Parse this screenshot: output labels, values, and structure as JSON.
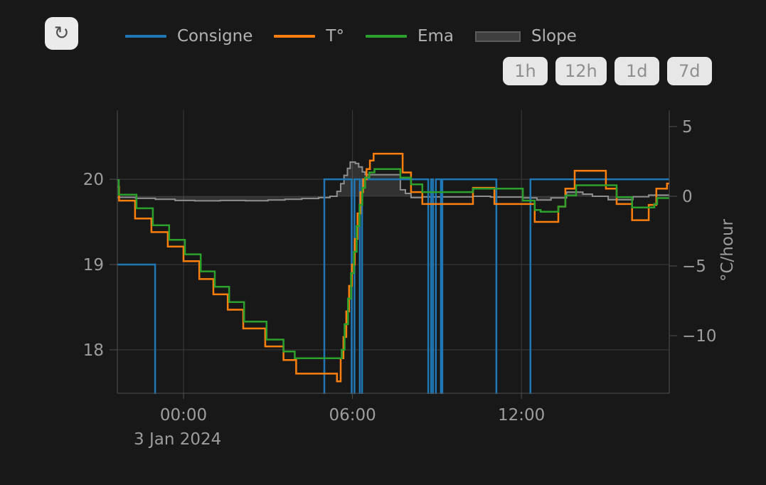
{
  "toolbar": {
    "refresh_icon": "↻"
  },
  "legend": {
    "items": [
      {
        "label": "Consigne",
        "color": "#1f77b4",
        "type": "line"
      },
      {
        "label": "T°",
        "color": "#ff7f0e",
        "type": "line"
      },
      {
        "label": "Ema",
        "color": "#2ca02c",
        "type": "line"
      },
      {
        "label": "Slope",
        "color": "#5c5c5c",
        "fill": "#3f3f3f",
        "type": "area"
      }
    ]
  },
  "time_range_buttons": [
    {
      "label": "1h"
    },
    {
      "label": "12h"
    },
    {
      "label": "1d"
    },
    {
      "label": "7d"
    }
  ],
  "colors": {
    "background": "#181818",
    "grid": "#3c3c3c",
    "axis": "#505050",
    "tick_text": "#9d9d9d",
    "legend_text": "#b2b2b2",
    "button_bg": "#e7e7e7",
    "button_text": "#8f8f8f",
    "slope_stroke": "#8f8f8f",
    "slope_fill": "rgba(145,145,145,0.22)"
  },
  "chart_data": {
    "type": "line",
    "title": "",
    "xlabel_date": "3 Jan 2024",
    "x_unit": "hours from midnight, 3 Jan 2024",
    "x_axis": {
      "range": [
        -2.35,
        17.25
      ],
      "ticks": [
        {
          "v": 0,
          "label": "00:00"
        },
        {
          "v": 6,
          "label": "06:00"
        },
        {
          "v": 12,
          "label": "12:00"
        }
      ]
    },
    "y_left": {
      "unit": "°C",
      "range": [
        17.49,
        20.81
      ],
      "ticks": [
        {
          "v": 20,
          "label": "20"
        },
        {
          "v": 19,
          "label": "19"
        },
        {
          "v": 18,
          "label": "18"
        }
      ]
    },
    "y_right": {
      "label": "°C/hour",
      "range": [
        -14.13,
        6.17
      ],
      "ticks": [
        {
          "v": 5,
          "label": "5"
        },
        {
          "v": 0,
          "label": "0"
        },
        {
          "v": -5,
          "label": "−5"
        },
        {
          "v": -10,
          "label": "−10"
        }
      ]
    },
    "series": [
      {
        "name": "Slope",
        "axis": "right",
        "step": true,
        "area": true,
        "baseline": 0,
        "color": "#8f8f8f",
        "fill": "rgba(145,145,145,0.22)",
        "width": 2,
        "points": [
          [
            -2.35,
            -0.08
          ],
          [
            -1.7,
            -0.15
          ],
          [
            -1.0,
            -0.22
          ],
          [
            -0.3,
            -0.3
          ],
          [
            0.4,
            -0.33
          ],
          [
            1.3,
            -0.3
          ],
          [
            2.2,
            -0.32
          ],
          [
            3.0,
            -0.27
          ],
          [
            3.6,
            -0.22
          ],
          [
            4.2,
            -0.16
          ],
          [
            4.8,
            -0.1
          ],
          [
            5.2,
            0.0
          ],
          [
            5.45,
            0.35
          ],
          [
            5.58,
            0.9
          ],
          [
            5.7,
            1.5
          ],
          [
            5.82,
            2.0
          ],
          [
            5.92,
            2.45
          ],
          [
            6.1,
            2.35
          ],
          [
            6.22,
            2.1
          ],
          [
            6.35,
            1.75
          ],
          [
            6.45,
            1.55
          ],
          [
            7.7,
            0.46
          ],
          [
            7.88,
            0.2
          ],
          [
            8.08,
            -0.1
          ],
          [
            8.48,
            -0.05
          ],
          [
            10.28,
            0.0
          ],
          [
            10.9,
            -0.06
          ],
          [
            12.05,
            -0.12
          ],
          [
            12.55,
            -0.27
          ],
          [
            13.05,
            -0.12
          ],
          [
            13.6,
            0.3
          ],
          [
            14.18,
            0.15
          ],
          [
            14.52,
            0.0
          ],
          [
            15.08,
            -0.25
          ],
          [
            15.96,
            -0.03
          ],
          [
            16.52,
            0.08
          ]
        ]
      },
      {
        "name": "Consigne",
        "axis": "left",
        "step": true,
        "color": "#1f77b4",
        "width": 2.5,
        "points": [
          [
            -2.35,
            19
          ],
          [
            -1.01,
            17
          ],
          [
            5.0,
            20
          ],
          [
            5.97,
            17
          ],
          [
            6.07,
            20
          ],
          [
            6.26,
            17
          ],
          [
            6.34,
            20
          ],
          [
            8.69,
            17
          ],
          [
            8.79,
            20
          ],
          [
            8.86,
            17
          ],
          [
            8.96,
            20
          ],
          [
            9.14,
            17
          ],
          [
            9.19,
            20
          ],
          [
            11.11,
            17
          ],
          [
            12.32,
            20
          ]
        ]
      },
      {
        "name": "T°",
        "axis": "left",
        "step": true,
        "color": "#ff7f0e",
        "width": 2.5,
        "points": [
          [
            -2.35,
            19.91
          ],
          [
            -2.29,
            19.75
          ],
          [
            -1.72,
            19.54
          ],
          [
            -1.14,
            19.38
          ],
          [
            -0.56,
            19.21
          ],
          [
            0.0,
            19.04
          ],
          [
            0.56,
            18.83
          ],
          [
            1.06,
            18.65
          ],
          [
            1.57,
            18.47
          ],
          [
            2.12,
            18.25
          ],
          [
            2.9,
            18.04
          ],
          [
            3.55,
            17.88
          ],
          [
            4.0,
            17.72
          ],
          [
            5.45,
            17.63
          ],
          [
            5.58,
            17.9
          ],
          [
            5.68,
            18.15
          ],
          [
            5.78,
            18.45
          ],
          [
            5.88,
            18.75
          ],
          [
            5.98,
            19.0
          ],
          [
            6.08,
            19.3
          ],
          [
            6.18,
            19.6
          ],
          [
            6.28,
            19.85
          ],
          [
            6.38,
            20.0
          ],
          [
            6.5,
            20.12
          ],
          [
            6.62,
            20.22
          ],
          [
            6.75,
            20.3
          ],
          [
            7.78,
            20.08
          ],
          [
            8.08,
            19.85
          ],
          [
            8.48,
            19.71
          ],
          [
            10.28,
            19.9
          ],
          [
            11.04,
            19.71
          ],
          [
            12.47,
            19.5
          ],
          [
            13.31,
            19.68
          ],
          [
            13.56,
            19.89
          ],
          [
            13.89,
            20.1
          ],
          [
            15.0,
            19.89
          ],
          [
            15.38,
            19.71
          ],
          [
            15.93,
            19.52
          ],
          [
            16.52,
            19.7
          ],
          [
            16.79,
            19.89
          ],
          [
            17.17,
            19.95
          ]
        ]
      },
      {
        "name": "Ema",
        "axis": "left",
        "step": true,
        "color": "#2ca02c",
        "width": 2.5,
        "points": [
          [
            -2.35,
            19.99
          ],
          [
            -2.3,
            19.82
          ],
          [
            -1.67,
            19.66
          ],
          [
            -1.09,
            19.46
          ],
          [
            -0.51,
            19.29
          ],
          [
            0.05,
            19.12
          ],
          [
            0.61,
            18.92
          ],
          [
            1.11,
            18.74
          ],
          [
            1.62,
            18.56
          ],
          [
            2.15,
            18.33
          ],
          [
            2.95,
            18.12
          ],
          [
            3.55,
            17.98
          ],
          [
            3.95,
            17.9
          ],
          [
            5.62,
            18.0
          ],
          [
            5.72,
            18.3
          ],
          [
            5.84,
            18.6
          ],
          [
            5.95,
            18.9
          ],
          [
            6.05,
            19.15
          ],
          [
            6.15,
            19.45
          ],
          [
            6.25,
            19.7
          ],
          [
            6.35,
            19.9
          ],
          [
            6.45,
            20.02
          ],
          [
            6.6,
            20.08
          ],
          [
            6.78,
            20.12
          ],
          [
            7.7,
            20.02
          ],
          [
            8.08,
            19.94
          ],
          [
            8.48,
            19.85
          ],
          [
            10.28,
            19.89
          ],
          [
            12.05,
            19.75
          ],
          [
            12.47,
            19.64
          ],
          [
            12.68,
            19.62
          ],
          [
            13.31,
            19.68
          ],
          [
            13.56,
            19.81
          ],
          [
            13.94,
            19.93
          ],
          [
            15.38,
            19.79
          ],
          [
            15.93,
            19.67
          ],
          [
            16.72,
            19.71
          ],
          [
            16.82,
            19.78
          ]
        ]
      }
    ],
    "legend_position": "top",
    "grid": true
  }
}
